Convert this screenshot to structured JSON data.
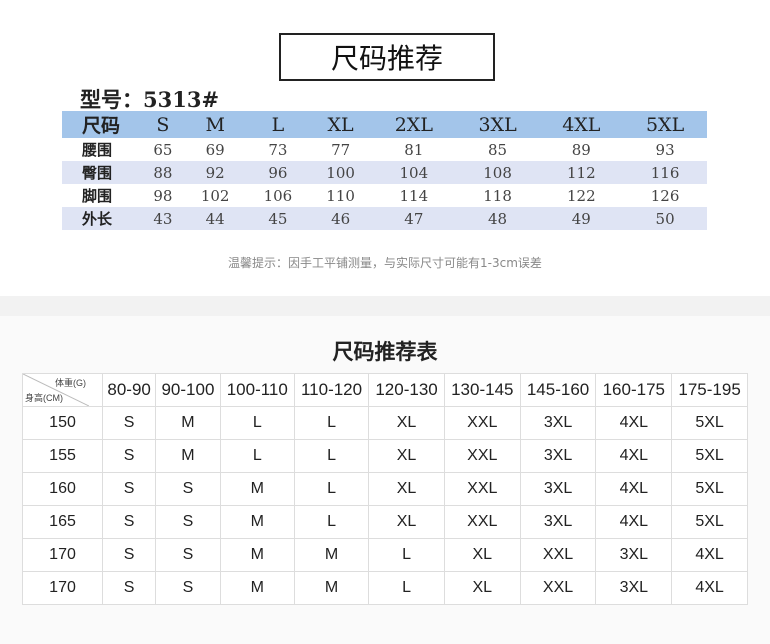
{
  "top": {
    "title": "尺码推荐",
    "model": "型号：5313#",
    "header": [
      "尺码",
      "S",
      "M",
      "L",
      "XL",
      "2XL",
      "3XL",
      "4XL",
      "5XL"
    ],
    "rows": [
      [
        "腰围",
        "65",
        "69",
        "73",
        "77",
        "81",
        "85",
        "89",
        "93"
      ],
      [
        "臀围",
        "88",
        "92",
        "96",
        "100",
        "104",
        "108",
        "112",
        "116"
      ],
      [
        "脚围",
        "98",
        "102",
        "106",
        "110",
        "114",
        "118",
        "122",
        "126"
      ],
      [
        "外长",
        "43",
        "44",
        "45",
        "46",
        "47",
        "48",
        "49",
        "50"
      ]
    ],
    "note": "温馨提示：因手工平铺测量，与实际尺寸可能有1-3cm误差",
    "colors": {
      "header": "#a3c5ea",
      "alt_row": "#dfe4f4"
    }
  },
  "bottom": {
    "title": "尺码推荐表",
    "corner_top": "体重(G)",
    "corner_bottom": "身高(CM)",
    "weights": [
      "80-90",
      "90-100",
      "100-110",
      "110-120",
      "120-130",
      "130-145",
      "145-160",
      "160-175",
      "175-195"
    ],
    "rows": [
      [
        "150",
        "S",
        "M",
        "L",
        "L",
        "XL",
        "XXL",
        "3XL",
        "4XL",
        "5XL"
      ],
      [
        "155",
        "S",
        "M",
        "L",
        "L",
        "XL",
        "XXL",
        "3XL",
        "4XL",
        "5XL"
      ],
      [
        "160",
        "S",
        "S",
        "M",
        "L",
        "XL",
        "XXL",
        "3XL",
        "4XL",
        "5XL"
      ],
      [
        "165",
        "S",
        "S",
        "M",
        "L",
        "XL",
        "XXL",
        "3XL",
        "4XL",
        "5XL"
      ],
      [
        "170",
        "S",
        "S",
        "M",
        "M",
        "L",
        "XL",
        "XXL",
        "3XL",
        "4XL"
      ],
      [
        "170",
        "S",
        "S",
        "M",
        "M",
        "L",
        "XL",
        "XXL",
        "3XL",
        "4XL"
      ]
    ]
  }
}
